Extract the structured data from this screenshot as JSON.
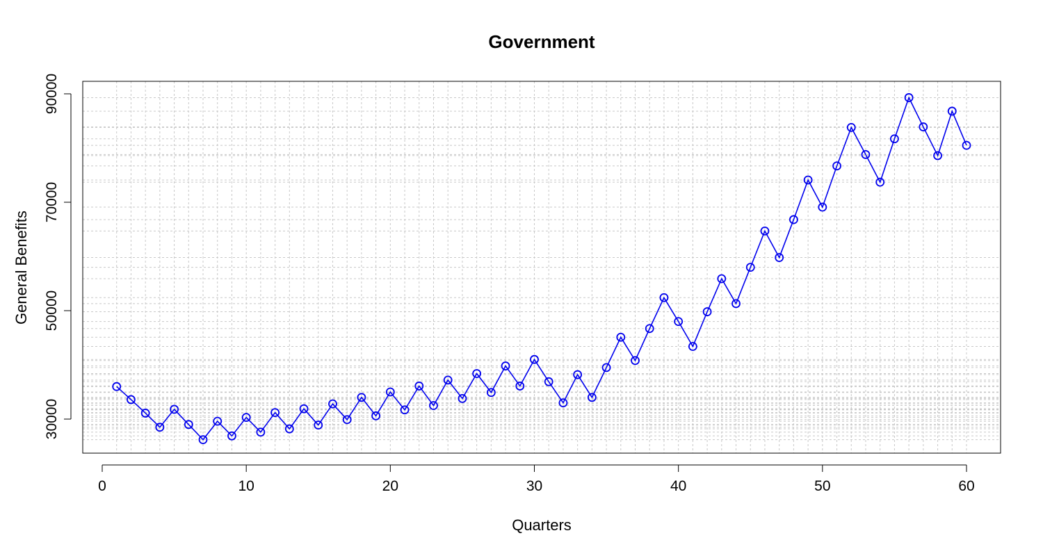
{
  "chart_data": {
    "type": "line",
    "title": "Government",
    "xlabel": "Quarters",
    "ylabel": "General Benefits",
    "xlim": [
      0,
      60
    ],
    "ylim": [
      24000,
      92000
    ],
    "x_ticks": [
      0,
      10,
      20,
      30,
      40,
      50,
      60
    ],
    "y_ticks": [
      30000,
      50000,
      70000,
      90000
    ],
    "grid": true,
    "legend": "none",
    "series": [
      {
        "color": "#0000ee",
        "marker": "open-circle",
        "x": [
          1,
          2,
          3,
          4,
          5,
          6,
          7,
          8,
          9,
          10,
          11,
          12,
          13,
          14,
          15,
          16,
          17,
          18,
          19,
          20,
          21,
          22,
          23,
          24,
          25,
          26,
          27,
          28,
          29,
          30,
          31,
          32,
          33,
          34,
          35,
          36,
          37,
          38,
          39,
          40,
          41,
          42,
          43,
          44,
          45,
          46,
          47,
          48,
          49,
          50,
          51,
          52,
          53,
          54,
          55,
          56,
          57,
          58,
          59,
          60
        ],
        "values": [
          36000,
          33600,
          31100,
          28500,
          31800,
          29000,
          26200,
          29600,
          26900,
          30300,
          27600,
          31200,
          28200,
          31900,
          28900,
          32800,
          29900,
          34000,
          30600,
          35000,
          31700,
          36100,
          32500,
          37200,
          33800,
          38400,
          34900,
          39800,
          36100,
          41000,
          36900,
          33000,
          38200,
          34000,
          39500,
          45100,
          40800,
          46700,
          52400,
          48000,
          43400,
          49800,
          55900,
          51300,
          58000,
          64700,
          59800,
          66800,
          74100,
          69100,
          76700,
          83800,
          78800,
          73700,
          81700,
          89300,
          83900,
          78600,
          86800,
          80500
        ]
      }
    ]
  }
}
